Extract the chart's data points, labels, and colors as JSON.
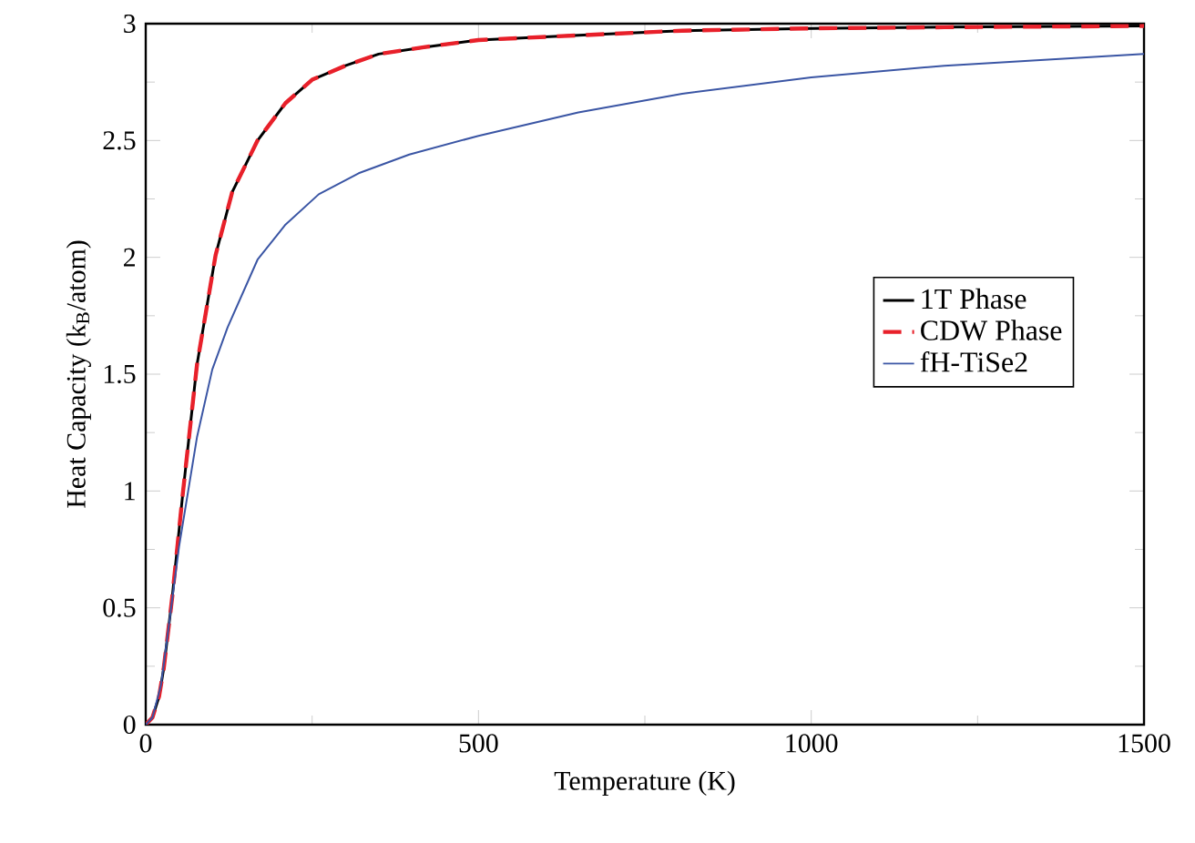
{
  "chart_data": {
    "type": "line",
    "xlabel": "Temperature (K)",
    "ylabel": "Heat Capacity (k$_{B}$/atom)",
    "xlim": [
      0,
      1500
    ],
    "ylim": [
      0,
      3
    ],
    "xticks": [
      0,
      500,
      1000,
      1500
    ],
    "yticks": [
      0,
      0.5,
      1,
      1.5,
      2,
      2.5,
      3
    ],
    "grid": false,
    "legend": "right",
    "marker": "none",
    "series": [
      {
        "name": "1T Phase",
        "color": "#000000",
        "line_style": "solid",
        "x": [
          0,
          10,
          20,
          27,
          40,
          55,
          77,
          105,
          130,
          168,
          210,
          250,
          300,
          350,
          420,
          500,
          650,
          806,
          1000,
          1200,
          1500
        ],
        "values": [
          0,
          0.03,
          0.12,
          0.24,
          0.55,
          0.97,
          1.54,
          2.01,
          2.28,
          2.5,
          2.66,
          2.76,
          2.82,
          2.87,
          2.9,
          2.93,
          2.95,
          2.97,
          2.98,
          2.985,
          2.99
        ]
      },
      {
        "name": "CDW Phase",
        "color": "#e8202a",
        "line_style": "dashed",
        "x": [
          0,
          10,
          20,
          27,
          40,
          55,
          77,
          105,
          130,
          168,
          210,
          250,
          300,
          350,
          420,
          500,
          650,
          806,
          1000,
          1200,
          1500
        ],
        "values": [
          0,
          0.03,
          0.12,
          0.24,
          0.55,
          0.97,
          1.54,
          2.01,
          2.28,
          2.5,
          2.66,
          2.76,
          2.82,
          2.87,
          2.9,
          2.93,
          2.95,
          2.97,
          2.98,
          2.985,
          2.99
        ]
      },
      {
        "name": "fH-TiSe2",
        "color": "#3a55a4",
        "line_style": "solid",
        "x": [
          0,
          10,
          23,
          35,
          50,
          77,
          100,
          123,
          168,
          210,
          260,
          320,
          396,
          500,
          650,
          806,
          1000,
          1200,
          1500
        ],
        "values": [
          0,
          0.03,
          0.17,
          0.43,
          0.76,
          1.23,
          1.52,
          1.7,
          1.99,
          2.14,
          2.27,
          2.36,
          2.44,
          2.52,
          2.62,
          2.7,
          2.77,
          2.82,
          2.87
        ]
      }
    ]
  }
}
